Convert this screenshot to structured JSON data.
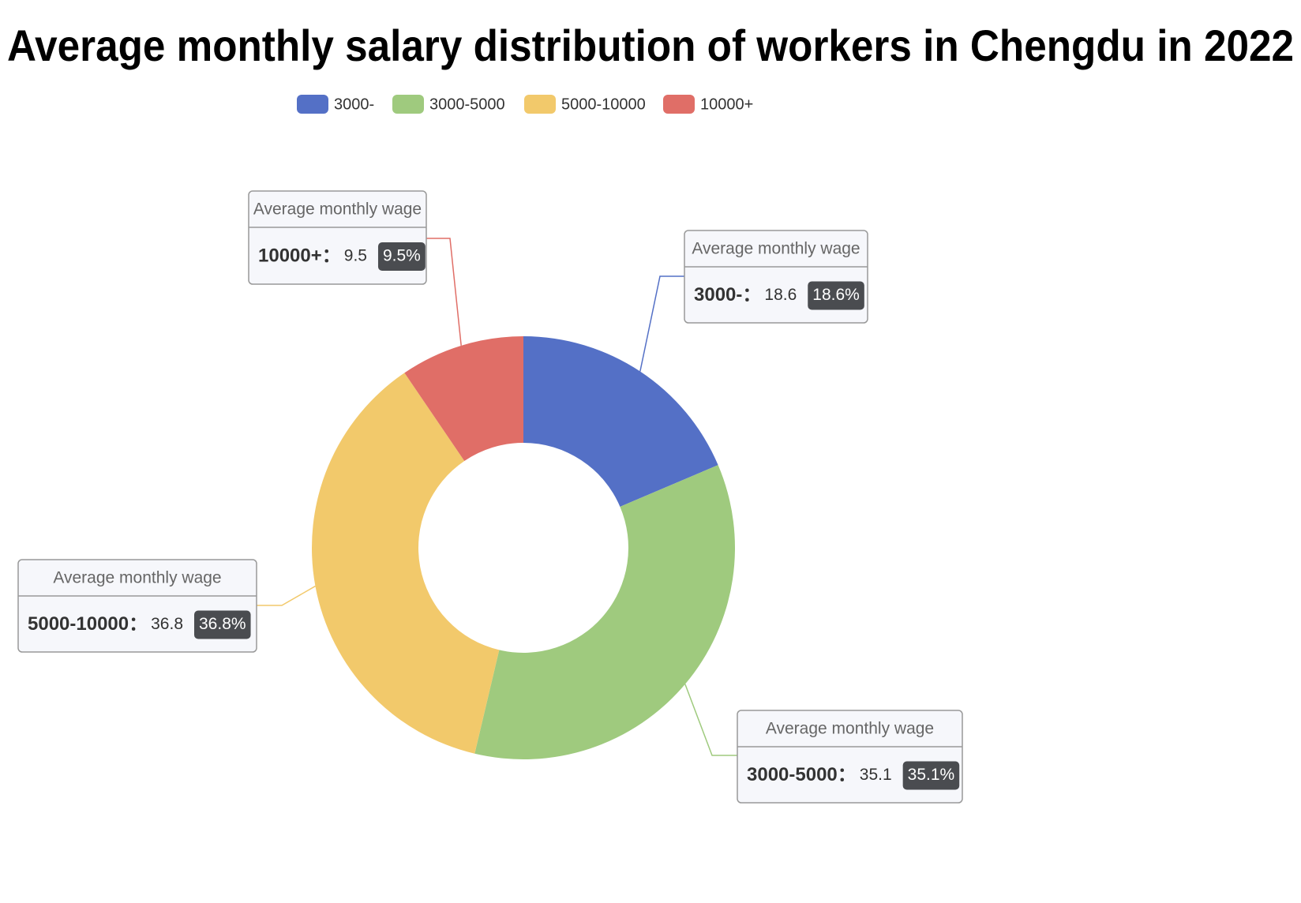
{
  "chart_data": {
    "type": "pie",
    "title": "Average monthly salary distribution of workers in Chengdu in 2022",
    "series_name": "Average monthly wage",
    "label_separator": "：",
    "categories": [
      "3000-",
      "3000-5000",
      "5000-10000",
      "10000+"
    ],
    "values": [
      18.6,
      35.1,
      36.8,
      9.5
    ],
    "value_labels": [
      "18.6%",
      "35.1%",
      "36.8%",
      "9.5%"
    ],
    "colors": [
      "#5470c6",
      "#9fca7e",
      "#f2c96b",
      "#e06e67"
    ],
    "donut": true
  }
}
